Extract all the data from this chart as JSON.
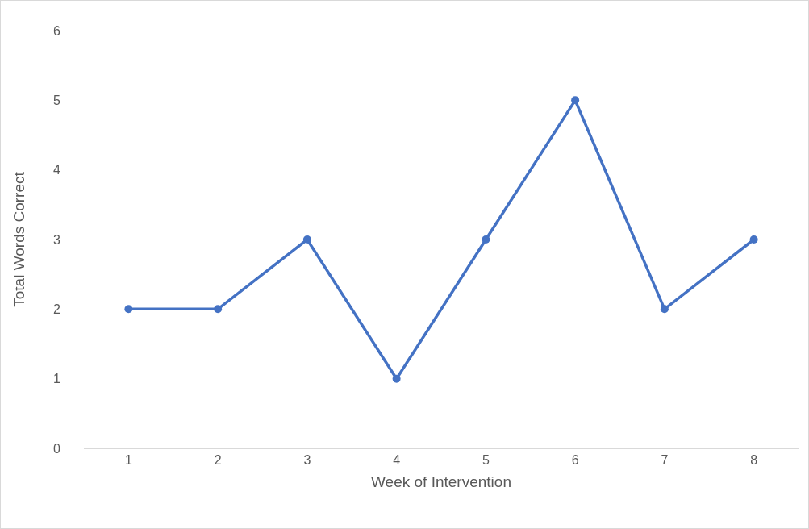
{
  "chart_data": {
    "type": "line",
    "xlabel": "Week of Intervention",
    "ylabel": "Total Words Correct",
    "categories": [
      "1",
      "2",
      "3",
      "4",
      "5",
      "6",
      "7",
      "8"
    ],
    "values": [
      2,
      2,
      3,
      1,
      3,
      5,
      2,
      3
    ],
    "color": "#4472c4",
    "marker": "circle",
    "line_style": "solid",
    "ylim": [
      0,
      6
    ],
    "yticks": [
      0,
      1,
      2,
      3,
      4,
      5,
      6
    ]
  }
}
